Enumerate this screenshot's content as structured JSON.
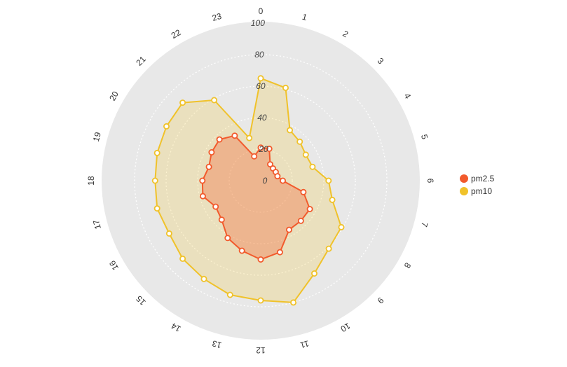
{
  "chart_data": {
    "type": "radar",
    "title": "",
    "angle_labels": [
      "0",
      "1",
      "2",
      "3",
      "4",
      "5",
      "6",
      "7",
      "8",
      "9",
      "10",
      "11",
      "12",
      "13",
      "14",
      "15",
      "16",
      "17",
      "18",
      "19",
      "20",
      "21",
      "22",
      "23"
    ],
    "radial_ticks": [
      "0",
      "20",
      "40",
      "60",
      "80",
      "100"
    ],
    "rlim": [
      0,
      100
    ],
    "grid": true,
    "legend_position": "right",
    "series": [
      {
        "name": "pm2.5",
        "color": "#f25a2c",
        "values": [
          21,
          21,
          12,
          11,
          11,
          11,
          14,
          28,
          36,
          36,
          36,
          47,
          50,
          46,
          42,
          35,
          33,
          38,
          37,
          34,
          36,
          37,
          33,
          16
        ]
      },
      {
        "name": "pm10",
        "color": "#f0c22a",
        "values": [
          65,
          61,
          37,
          35,
          33,
          34,
          43,
          47,
          59,
          61,
          68,
          80,
          76,
          75,
          72,
          70,
          67,
          68,
          67,
          68,
          69,
          70,
          59,
          28
        ]
      }
    ]
  }
}
